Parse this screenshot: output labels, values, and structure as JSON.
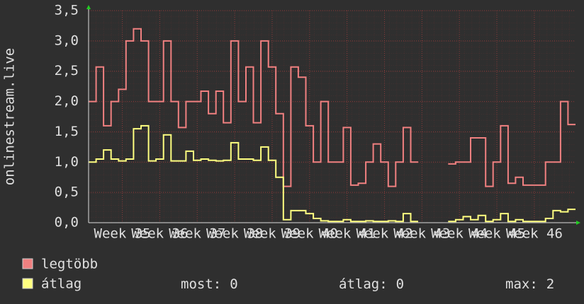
{
  "chart_data": {
    "type": "line",
    "y_label": "onlinestream.live",
    "x": [
      34.1,
      34.3,
      34.5,
      34.7,
      34.9,
      35.1,
      35.3,
      35.5,
      35.7,
      35.9,
      36.1,
      36.3,
      36.5,
      36.7,
      36.9,
      37.1,
      37.3,
      37.5,
      37.7,
      37.9,
      38.1,
      38.3,
      38.5,
      38.7,
      38.9,
      39.1,
      39.3,
      39.5,
      39.7,
      39.9,
      40.1,
      40.3,
      40.5,
      40.7,
      40.9,
      41.1,
      41.3,
      41.5,
      41.7,
      41.9,
      42.1,
      42.3,
      42.5,
      42.7,
      42.9,
      43.1,
      43.3,
      43.5,
      43.7,
      43.9,
      44.1,
      44.3,
      44.5,
      44.7,
      44.9,
      45.1,
      45.3,
      45.5,
      45.7,
      45.9,
      46.1,
      46.3,
      46.5,
      46.7,
      46.9
    ],
    "series": [
      {
        "name": "legtöbb",
        "color": "#f08080",
        "values": [
          2.0,
          2.57,
          1.6,
          2.0,
          2.2,
          3.0,
          3.2,
          3.0,
          2.0,
          2.0,
          3.0,
          2.0,
          1.57,
          2.0,
          2.0,
          2.17,
          1.8,
          2.17,
          1.65,
          3.0,
          2.0,
          2.57,
          1.65,
          3.0,
          2.57,
          1.8,
          0.6,
          2.57,
          2.4,
          1.6,
          1.0,
          2.0,
          1.0,
          1.0,
          1.57,
          0.62,
          0.65,
          1.0,
          1.3,
          1.0,
          0.6,
          1.0,
          1.57,
          1.0,
          null,
          null,
          null,
          null,
          0.97,
          1.0,
          1.0,
          1.4,
          1.4,
          0.6,
          1.0,
          1.6,
          0.65,
          0.75,
          0.62,
          0.62,
          0.62,
          1.0,
          1.0,
          2.0,
          1.62
        ]
      },
      {
        "name": "átlag",
        "color": "#ffff80",
        "values": [
          1.0,
          1.05,
          1.2,
          1.05,
          1.02,
          1.05,
          1.55,
          1.6,
          1.02,
          1.05,
          1.45,
          1.02,
          1.02,
          1.18,
          1.03,
          1.05,
          1.03,
          1.02,
          1.03,
          1.32,
          1.05,
          1.05,
          1.03,
          1.25,
          1.03,
          0.75,
          0.05,
          0.2,
          0.2,
          0.15,
          0.07,
          0.03,
          0.02,
          0.02,
          0.05,
          0.02,
          0.02,
          0.03,
          0.02,
          0.02,
          0.03,
          0.02,
          0.15,
          0.02,
          null,
          null,
          null,
          null,
          0.02,
          0.05,
          0.1,
          0.05,
          0.12,
          0.02,
          0.05,
          0.15,
          0.02,
          0.05,
          0.02,
          0.02,
          0.02,
          0.07,
          0.2,
          0.18,
          0.22
        ]
      }
    ],
    "xlim": [
      34.1,
      47.1
    ],
    "xticks": [
      {
        "value": 35,
        "label": "Week 35"
      },
      {
        "value": 36,
        "label": "Week 36"
      },
      {
        "value": 37,
        "label": "Week 37"
      },
      {
        "value": 38,
        "label": "Week 38"
      },
      {
        "value": 39,
        "label": "Week 39"
      },
      {
        "value": 40,
        "label": "Week 40"
      },
      {
        "value": 41,
        "label": "Week 41"
      },
      {
        "value": 42,
        "label": "Week 42"
      },
      {
        "value": 43,
        "label": "Week 43"
      },
      {
        "value": 44,
        "label": "Week 44"
      },
      {
        "value": 45,
        "label": "Week 45"
      },
      {
        "value": 46,
        "label": "Week 46"
      }
    ],
    "ylim": [
      0,
      3.5
    ],
    "yticks": [
      {
        "value": 0,
        "label": "0,0"
      },
      {
        "value": 0.5,
        "label": "0,5"
      },
      {
        "value": 1,
        "label": "1,0"
      },
      {
        "value": 1.5,
        "label": "1,5"
      },
      {
        "value": 2,
        "label": "2,0"
      },
      {
        "value": 2.5,
        "label": "2,5"
      },
      {
        "value": 3,
        "label": "3,0"
      },
      {
        "value": 3.5,
        "label": "3,5"
      }
    ],
    "grid": true,
    "stats": [
      {
        "label": "most:",
        "value": 0
      },
      {
        "label": "átlag:",
        "value": 0
      },
      {
        "label": "max:",
        "value": 2
      }
    ]
  }
}
